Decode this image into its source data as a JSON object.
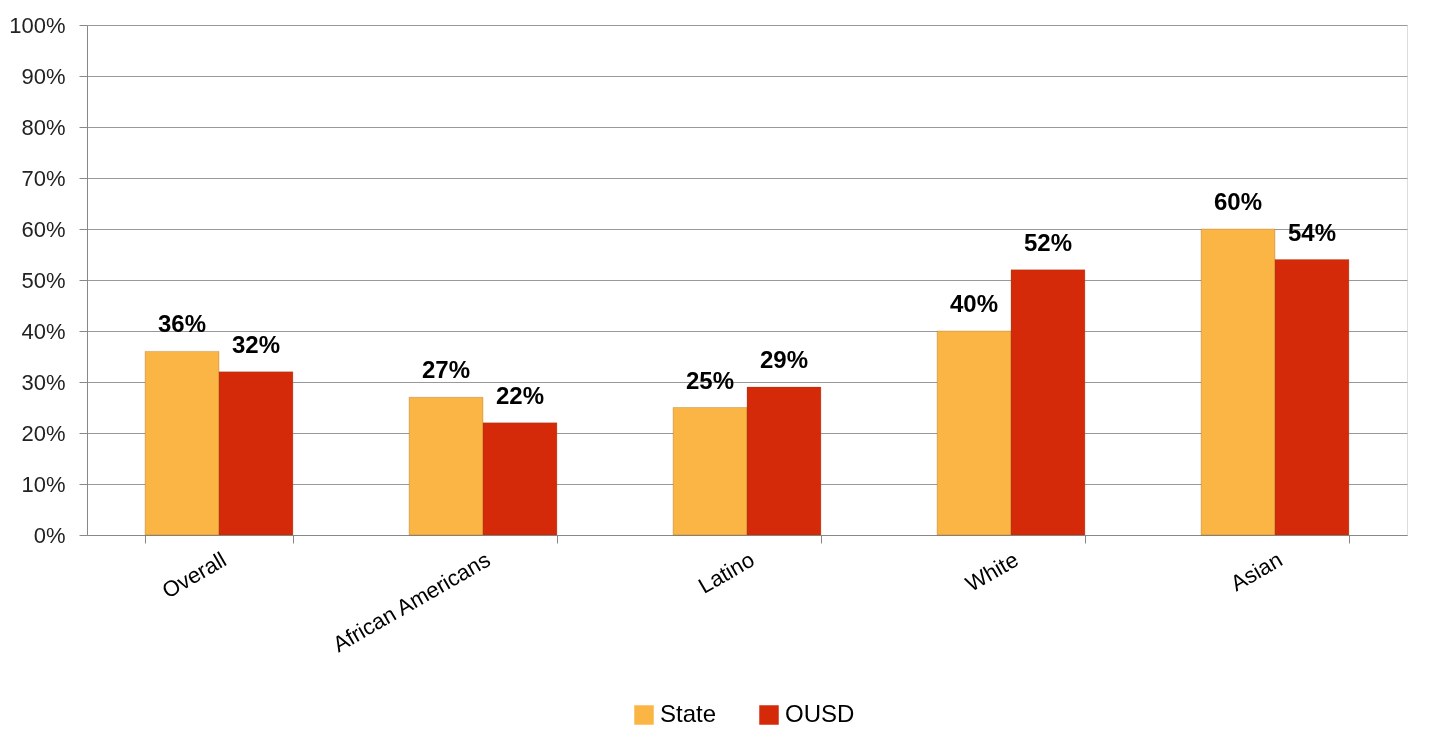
{
  "chart_data": {
    "type": "bar",
    "categories": [
      "Overall",
      "African Americans",
      "Latino",
      "White",
      "Asian"
    ],
    "series": [
      {
        "name": "State",
        "color": "#fbb545",
        "values": [
          36,
          27,
          25,
          40,
          60
        ],
        "value_labels": [
          "36%",
          "27%",
          "25%",
          "40%",
          "60%"
        ]
      },
      {
        "name": "OUSD",
        "color": "#d42a0a",
        "values": [
          32,
          22,
          29,
          52,
          54
        ],
        "value_labels": [
          "32%",
          "22%",
          "29%",
          "52%",
          "54%"
        ]
      }
    ],
    "ylim": [
      0,
      100
    ],
    "yticks": [
      {
        "value": 0,
        "label": "0%"
      },
      {
        "value": 10,
        "label": "10%"
      },
      {
        "value": 20,
        "label": "20%"
      },
      {
        "value": 30,
        "label": "30%"
      },
      {
        "value": 40,
        "label": "40%"
      },
      {
        "value": 50,
        "label": "50%"
      },
      {
        "value": 60,
        "label": "60%"
      },
      {
        "value": 70,
        "label": "70%"
      },
      {
        "value": 80,
        "label": "80%"
      },
      {
        "value": 90,
        "label": "90%"
      },
      {
        "value": 100,
        "label": "100%"
      }
    ],
    "grid": "y",
    "legend": "bottom"
  }
}
